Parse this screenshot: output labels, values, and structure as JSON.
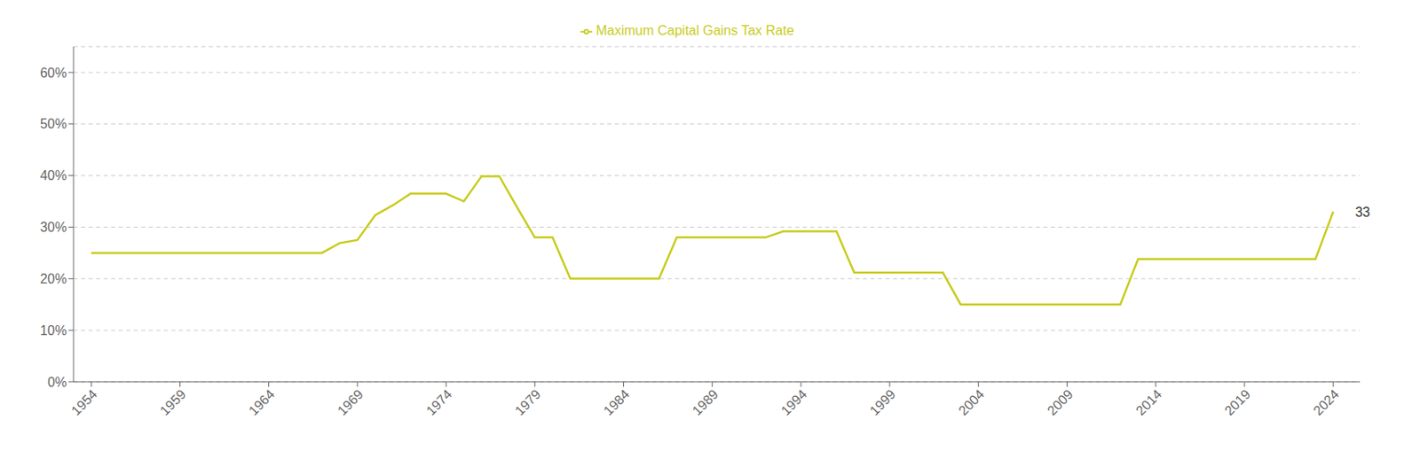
{
  "chart_data": {
    "type": "line",
    "x": [
      1954,
      1955,
      1956,
      1957,
      1958,
      1959,
      1960,
      1961,
      1962,
      1963,
      1964,
      1965,
      1966,
      1967,
      1968,
      1969,
      1970,
      1971,
      1972,
      1973,
      1974,
      1975,
      1976,
      1977,
      1978,
      1979,
      1980,
      1981,
      1982,
      1983,
      1984,
      1985,
      1986,
      1987,
      1988,
      1989,
      1990,
      1991,
      1992,
      1993,
      1994,
      1995,
      1996,
      1997,
      1998,
      1999,
      2000,
      2001,
      2002,
      2003,
      2004,
      2005,
      2006,
      2007,
      2008,
      2009,
      2010,
      2011,
      2012,
      2013,
      2014,
      2015,
      2016,
      2017,
      2018,
      2019,
      2020,
      2021,
      2022,
      2023,
      2024
    ],
    "series": [
      {
        "name": "Maximum Capital Gains Tax Rate",
        "color": "#c8cc1e",
        "values": [
          25,
          25,
          25,
          25,
          25,
          25,
          25,
          25,
          25,
          25,
          25,
          25,
          25,
          25,
          26.9,
          27.5,
          32.31,
          34.25,
          36.5,
          36.5,
          36.5,
          35,
          39.875,
          39.875,
          33.85,
          28,
          28,
          20,
          20,
          20,
          20,
          20,
          20,
          28,
          28,
          28,
          28,
          28,
          28,
          29.19,
          29.19,
          29.19,
          29.19,
          21.19,
          21.19,
          21.19,
          21.19,
          21.17,
          21.17,
          15,
          15,
          15,
          15,
          15,
          15,
          15,
          15,
          15,
          15,
          23.8,
          23.8,
          23.8,
          23.8,
          23.8,
          23.8,
          23.8,
          23.8,
          23.8,
          23.8,
          23.8,
          33
        ]
      }
    ],
    "xlim": [
      1953,
      2025.5
    ],
    "xticks": [
      1954,
      1959,
      1964,
      1969,
      1974,
      1979,
      1984,
      1989,
      1994,
      1999,
      2004,
      2009,
      2014,
      2019,
      2024
    ],
    "ylim": [
      0,
      65
    ],
    "yticks": [
      {
        "value": 0,
        "label": "0%"
      },
      {
        "value": 10,
        "label": "10%"
      },
      {
        "value": 20,
        "label": "20%"
      },
      {
        "value": 30,
        "label": "30%"
      },
      {
        "value": 40,
        "label": "40%"
      },
      {
        "value": 50,
        "label": "50%"
      },
      {
        "value": 60,
        "label": "60%"
      }
    ],
    "annotations": [
      {
        "text": "33",
        "x": 2025,
        "y": 33
      }
    ],
    "grid": true,
    "legend": "top"
  }
}
